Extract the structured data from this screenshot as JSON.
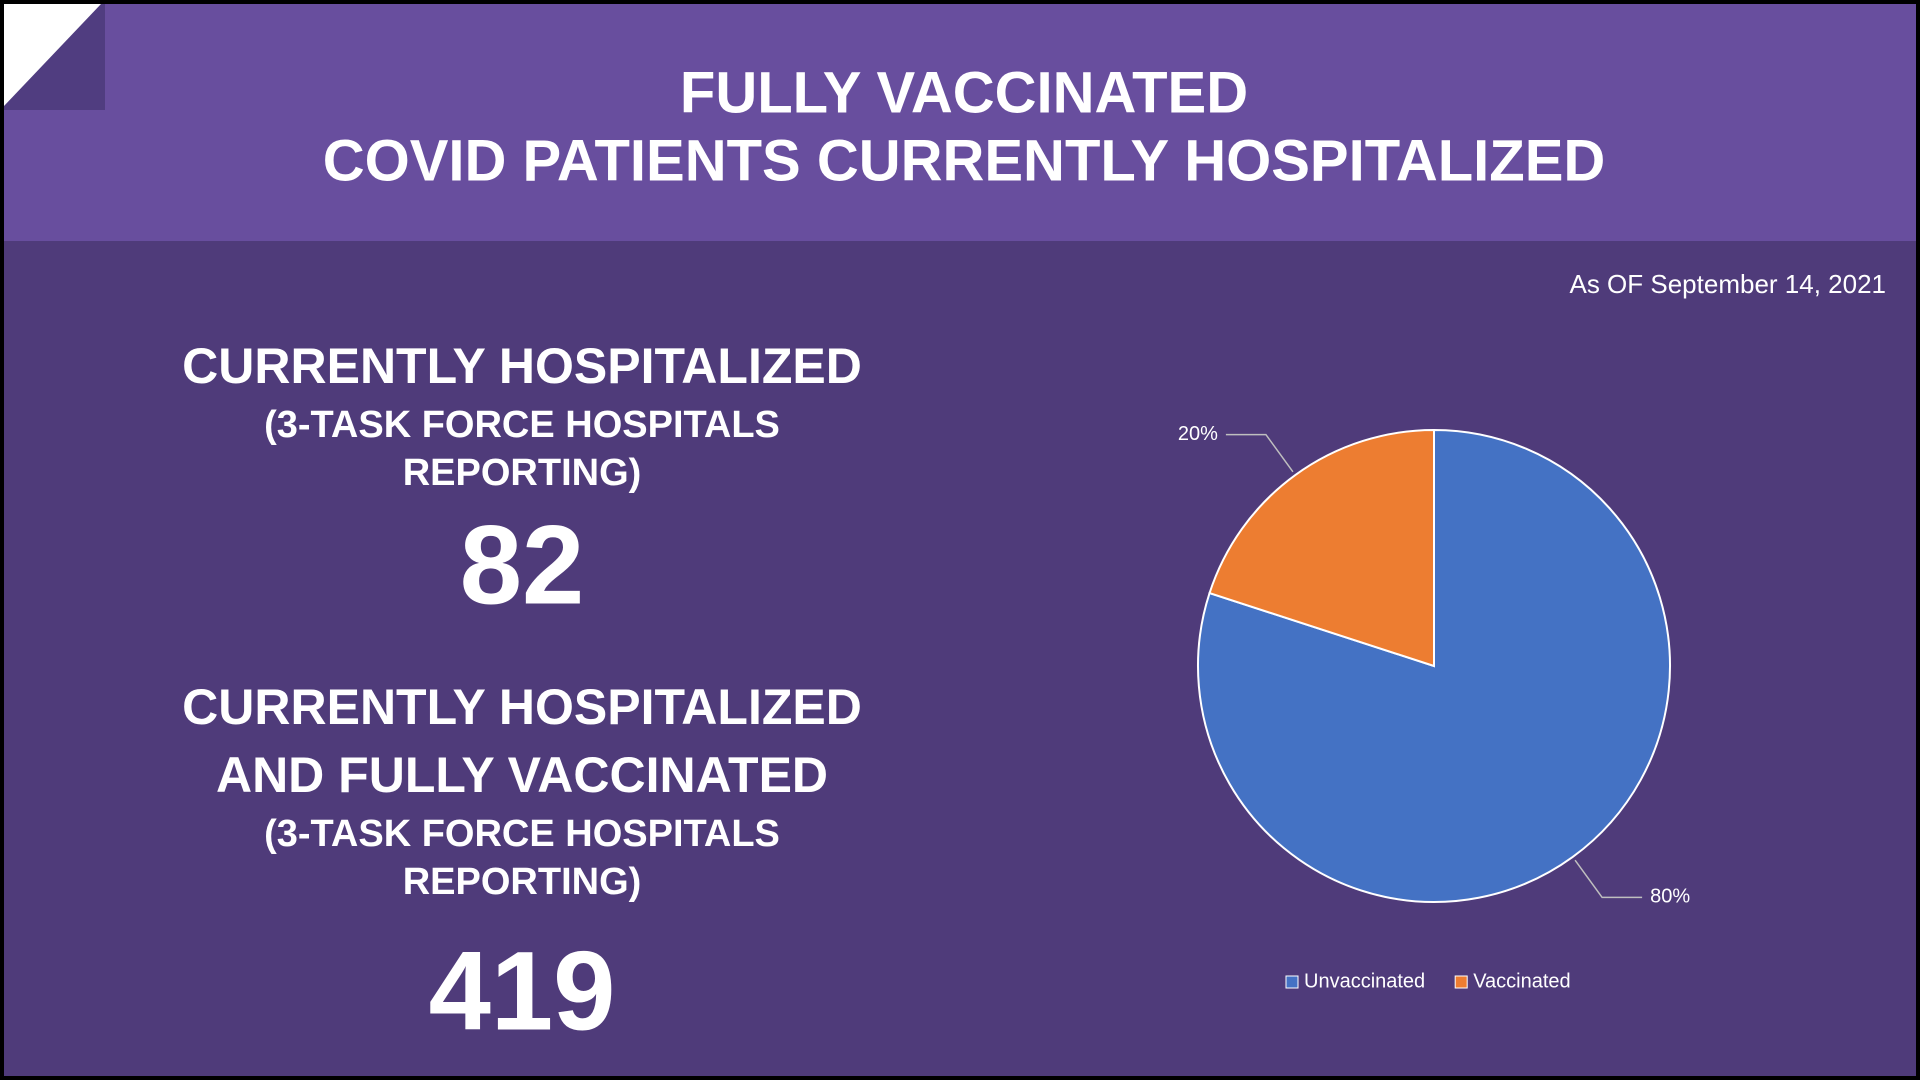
{
  "header": {
    "title_lines": [
      "FULLY VACCINATED",
      "COVID PATIENTS CURRENTLY HOSPITALIZED"
    ]
  },
  "as_of": "As OF September 14, 2021",
  "stats": [
    {
      "heading_lines": [
        "CURRENTLY HOSPITALIZED"
      ],
      "sub_lines": [
        "(3-TASK FORCE HOSPITALS",
        "REPORTING)"
      ],
      "value": 82
    },
    {
      "heading_lines": [
        "CURRENTLY HOSPITALIZED",
        "AND FULLY VACCINATED"
      ],
      "sub_lines": [
        "(3-TASK FORCE HOSPITALS",
        "REPORTING)"
      ],
      "value": 419
    }
  ],
  "chart_data": {
    "type": "pie",
    "categories": [
      "Unvaccinated",
      "Vaccinated"
    ],
    "values": [
      80,
      20
    ],
    "value_labels": [
      "80%",
      "20%"
    ],
    "colors": [
      "#4472c4",
      "#ed7d31"
    ],
    "legend": "bottom"
  }
}
